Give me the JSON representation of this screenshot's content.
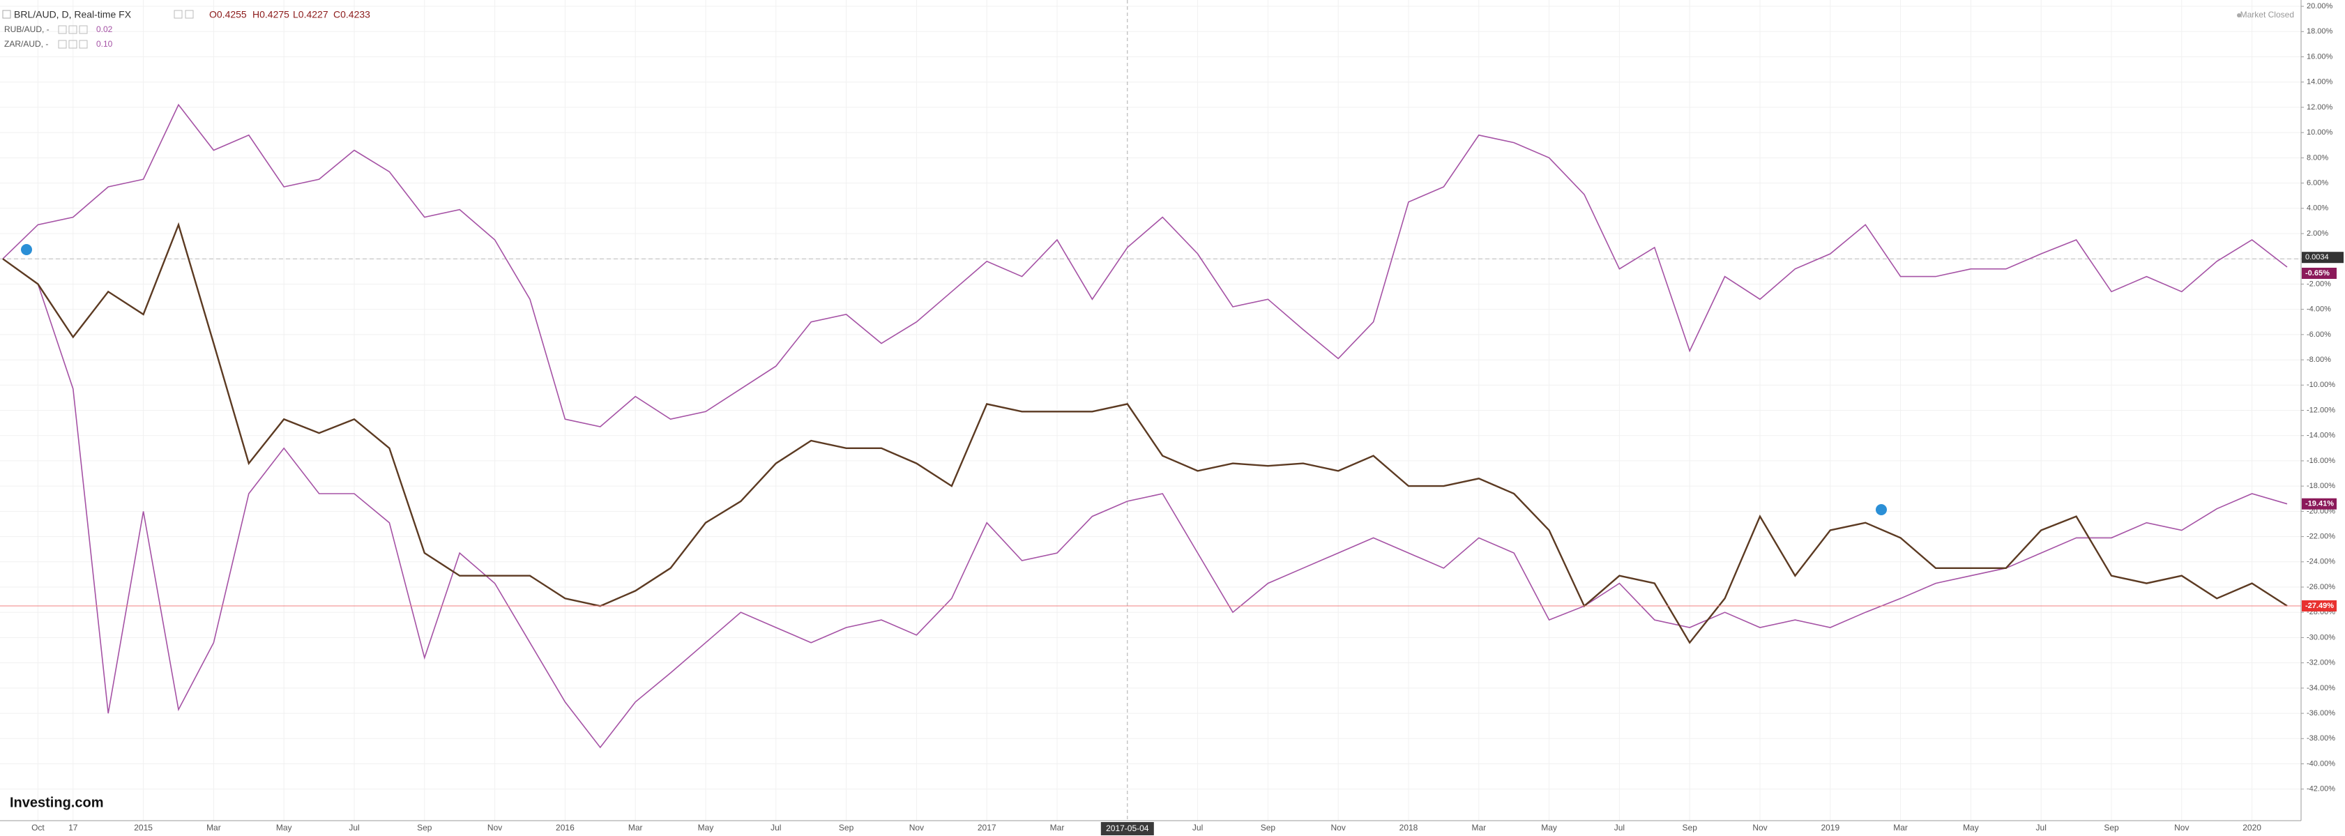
{
  "chart_data": {
    "type": "line",
    "categories": [
      null,
      "Oct",
      "17",
      null,
      "2015",
      null,
      "Mar",
      null,
      "May",
      null,
      "Jul",
      null,
      "Sep",
      null,
      "Nov",
      null,
      "2016",
      null,
      "Mar",
      null,
      "May",
      null,
      "Jul",
      null,
      "Sep",
      null,
      "Nov",
      null,
      "2017",
      null,
      "Mar",
      null,
      "2017-05-04",
      null,
      "Jul",
      null,
      "Sep",
      null,
      "Nov",
      null,
      "2018",
      null,
      "Mar",
      null,
      "May",
      null,
      "Jul",
      null,
      "Sep",
      null,
      "Nov",
      null,
      "2019",
      null,
      "Mar",
      null,
      "May",
      null,
      "Jul",
      null,
      "Sep",
      null,
      "Nov",
      null,
      "2020",
      null
    ],
    "crosshair_index": 32,
    "ohlc": [
      "O0.4255",
      "H0.4275",
      "L0.4227",
      "C0.4233"
    ],
    "baseline_label": "0.0034",
    "status": "Market Closed",
    "logo": "Investing.com",
    "series": [
      {
        "name": "BRL/AUD, D, Real-time FX",
        "color": "#5c3a22",
        "last_label": "-27.49%",
        "label_color": "#e8312f",
        "values": [
          0,
          -2,
          -6.2,
          -2.6,
          -4.4,
          2.7,
          -6.7,
          -16.2,
          -12.7,
          -13.8,
          -12.7,
          -15,
          -23.3,
          -25.1,
          -25.1,
          -25.1,
          -26.9,
          -27.5,
          -26.3,
          -24.5,
          -20.9,
          -19.2,
          -16.2,
          -14.4,
          -15,
          -15,
          -16.2,
          -18,
          -11.5,
          -12.1,
          -12.1,
          -12.1,
          -11.5,
          -15.6,
          -16.8,
          -16.2,
          -16.4,
          -16.2,
          -16.8,
          -15.6,
          -18,
          -18,
          -17.4,
          -18.6,
          -21.5,
          -27.5,
          -25.1,
          -25.7,
          -30.4,
          -26.9,
          -20.4,
          -25.1,
          -21.5,
          -20.9,
          -22.1,
          -24.5,
          -24.5,
          -24.5,
          -21.5,
          -20.4,
          -25.1,
          -25.7,
          -25.1,
          -26.9,
          -25.7,
          -27.49
        ]
      },
      {
        "name": "RUB/AUD, -",
        "legend_value": "0.02",
        "color": "#a552a5",
        "last_label": "-19.41%",
        "label_color": "#8b1a5a",
        "values": [
          0,
          -2,
          -10.3,
          -36,
          -20,
          -35.7,
          -30.4,
          -18.6,
          -15,
          -18.6,
          -18.6,
          -20.9,
          -31.6,
          -23.3,
          -25.7,
          -30.4,
          -35.1,
          -38.7,
          -35.1,
          -32.8,
          -30.4,
          -28,
          -29.2,
          -30.4,
          -29.2,
          -28.6,
          -29.8,
          -26.9,
          -20.9,
          -23.9,
          -23.3,
          -20.4,
          -19.2,
          -18.6,
          -23.3,
          -28,
          -25.7,
          -24.5,
          -23.3,
          -22.1,
          -23.3,
          -24.5,
          -22.1,
          -23.3,
          -28.6,
          -27.5,
          -25.7,
          -28.6,
          -29.2,
          -28,
          -29.2,
          -28.6,
          -29.2,
          -28,
          -26.9,
          -25.7,
          -25.1,
          -24.5,
          -23.3,
          -22.1,
          -22.1,
          -20.9,
          -21.5,
          -19.8,
          -18.6,
          -19.41
        ]
      },
      {
        "name": "ZAR/AUD, -",
        "legend_value": "0.10",
        "color": "#a552a5",
        "last_label": "-0.65%",
        "label_color": "#8b1a5a",
        "values": [
          0,
          2.7,
          3.3,
          5.7,
          6.3,
          12.2,
          8.6,
          9.8,
          5.7,
          6.3,
          8.6,
          6.9,
          3.3,
          3.9,
          1.5,
          -3.2,
          -12.7,
          -13.3,
          -10.9,
          -12.7,
          -12.1,
          -10.3,
          -8.5,
          -5,
          -4.4,
          -6.7,
          -5,
          -2.6,
          -0.2,
          -1.4,
          1.5,
          -3.2,
          0.9,
          3.3,
          0.4,
          -3.8,
          -3.2,
          -5.6,
          -7.9,
          -5,
          4.5,
          5.7,
          9.8,
          9.2,
          8,
          5.1,
          -0.8,
          0.9,
          -7.3,
          -1.4,
          -3.2,
          -0.8,
          0.4,
          2.7,
          -1.4,
          -1.4,
          -0.8,
          -0.8,
          0.4,
          1.5,
          -2.6,
          -1.4,
          -2.6,
          -0.2,
          1.5,
          -0.65
        ]
      }
    ],
    "ylim": [
      -44.5,
      20.5
    ],
    "yticks": [
      {
        "value": 20,
        "label": "20.00%"
      },
      {
        "value": 18,
        "label": "18.00%"
      },
      {
        "value": 16,
        "label": "16.00%"
      },
      {
        "value": 14,
        "label": "14.00%"
      },
      {
        "value": 12,
        "label": "12.00%"
      },
      {
        "value": 10,
        "label": "10.00%"
      },
      {
        "value": 8,
        "label": "8.00%"
      },
      {
        "value": 6,
        "label": "6.00%"
      },
      {
        "value": 4,
        "label": "4.00%"
      },
      {
        "value": 2,
        "label": "2.00%"
      },
      {
        "value": 0,
        "label": "0.00%"
      },
      {
        "value": -2,
        "label": "-2.00%"
      },
      {
        "value": -4,
        "label": "-4.00%"
      },
      {
        "value": -6,
        "label": "-6.00%"
      },
      {
        "value": -8,
        "label": "-8.00%"
      },
      {
        "value": -10,
        "label": "-10.00%"
      },
      {
        "value": -12,
        "label": "-12.00%"
      },
      {
        "value": -14,
        "label": "-14.00%"
      },
      {
        "value": -16,
        "label": "-16.00%"
      },
      {
        "value": -18,
        "label": "-18.00%"
      },
      {
        "value": -20,
        "label": "-20.00%"
      },
      {
        "value": -22,
        "label": "-22.00%"
      },
      {
        "value": -24,
        "label": "-24.00%"
      },
      {
        "value": -26,
        "label": "-26.00%"
      },
      {
        "value": -28,
        "label": "-28.00%"
      },
      {
        "value": -30,
        "label": "-30.00%"
      },
      {
        "value": -32,
        "label": "-32.00%"
      },
      {
        "value": -34,
        "label": "-34.00%"
      },
      {
        "value": -36,
        "label": "-36.00%"
      },
      {
        "value": -38,
        "label": "-38.00%"
      },
      {
        "value": -40,
        "label": "-40.00%"
      },
      {
        "value": -42,
        "label": "-42.00%"
      }
    ],
    "grid": true
  }
}
